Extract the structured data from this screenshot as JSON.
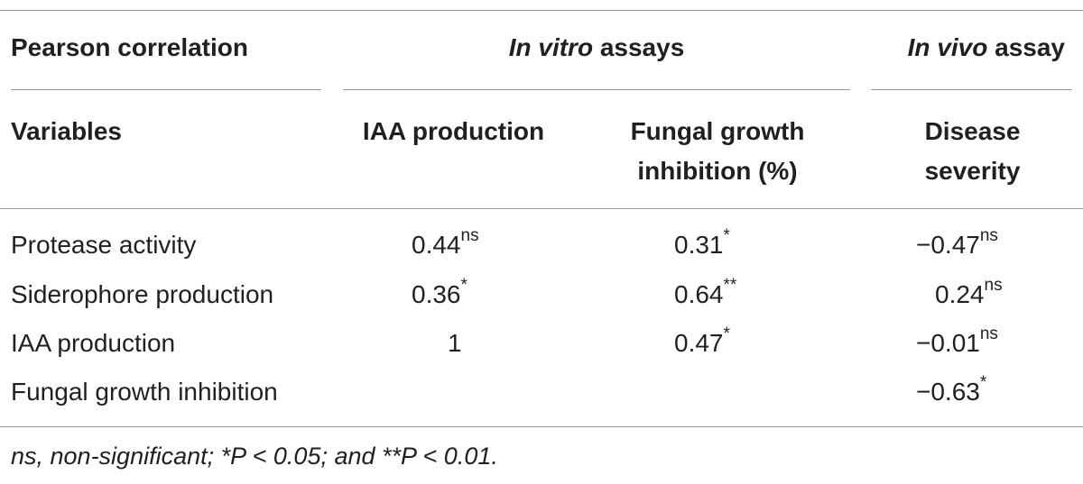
{
  "table": {
    "group_header": {
      "left": "Pearson correlation",
      "in_vitro_em": "In vitro",
      "in_vitro_rest": " assays",
      "in_vivo_em": "In vivo",
      "in_vivo_rest": " assay"
    },
    "col_header": {
      "variables": "Variables",
      "iaa": "IAA production",
      "fungal_line1": "Fungal growth",
      "fungal_line2": "inhibition (%)",
      "disease_line1": "Disease",
      "disease_line2": "severity"
    },
    "rows": [
      {
        "label": "Protease activity",
        "iaa": "0.44",
        "iaa_sig": "ns",
        "fungal": "0.31",
        "fungal_sig": "*",
        "disease": "−0.47",
        "disease_sig": "ns"
      },
      {
        "label": "Siderophore production",
        "iaa": "0.36",
        "iaa_sig": "*",
        "fungal": "0.64",
        "fungal_sig": "**",
        "disease": "0.24",
        "disease_sig": "ns"
      },
      {
        "label": "IAA production",
        "iaa": "1",
        "iaa_sig": "",
        "fungal": "0.47",
        "fungal_sig": "*",
        "disease": "−0.01",
        "disease_sig": "ns"
      },
      {
        "label": "Fungal growth inhibition",
        "iaa": "",
        "iaa_sig": "",
        "fungal": "",
        "fungal_sig": "",
        "disease": "−0.63",
        "disease_sig": "*"
      }
    ],
    "footnote": "ns, non-significant; *P < 0.05; and **P < 0.01."
  }
}
